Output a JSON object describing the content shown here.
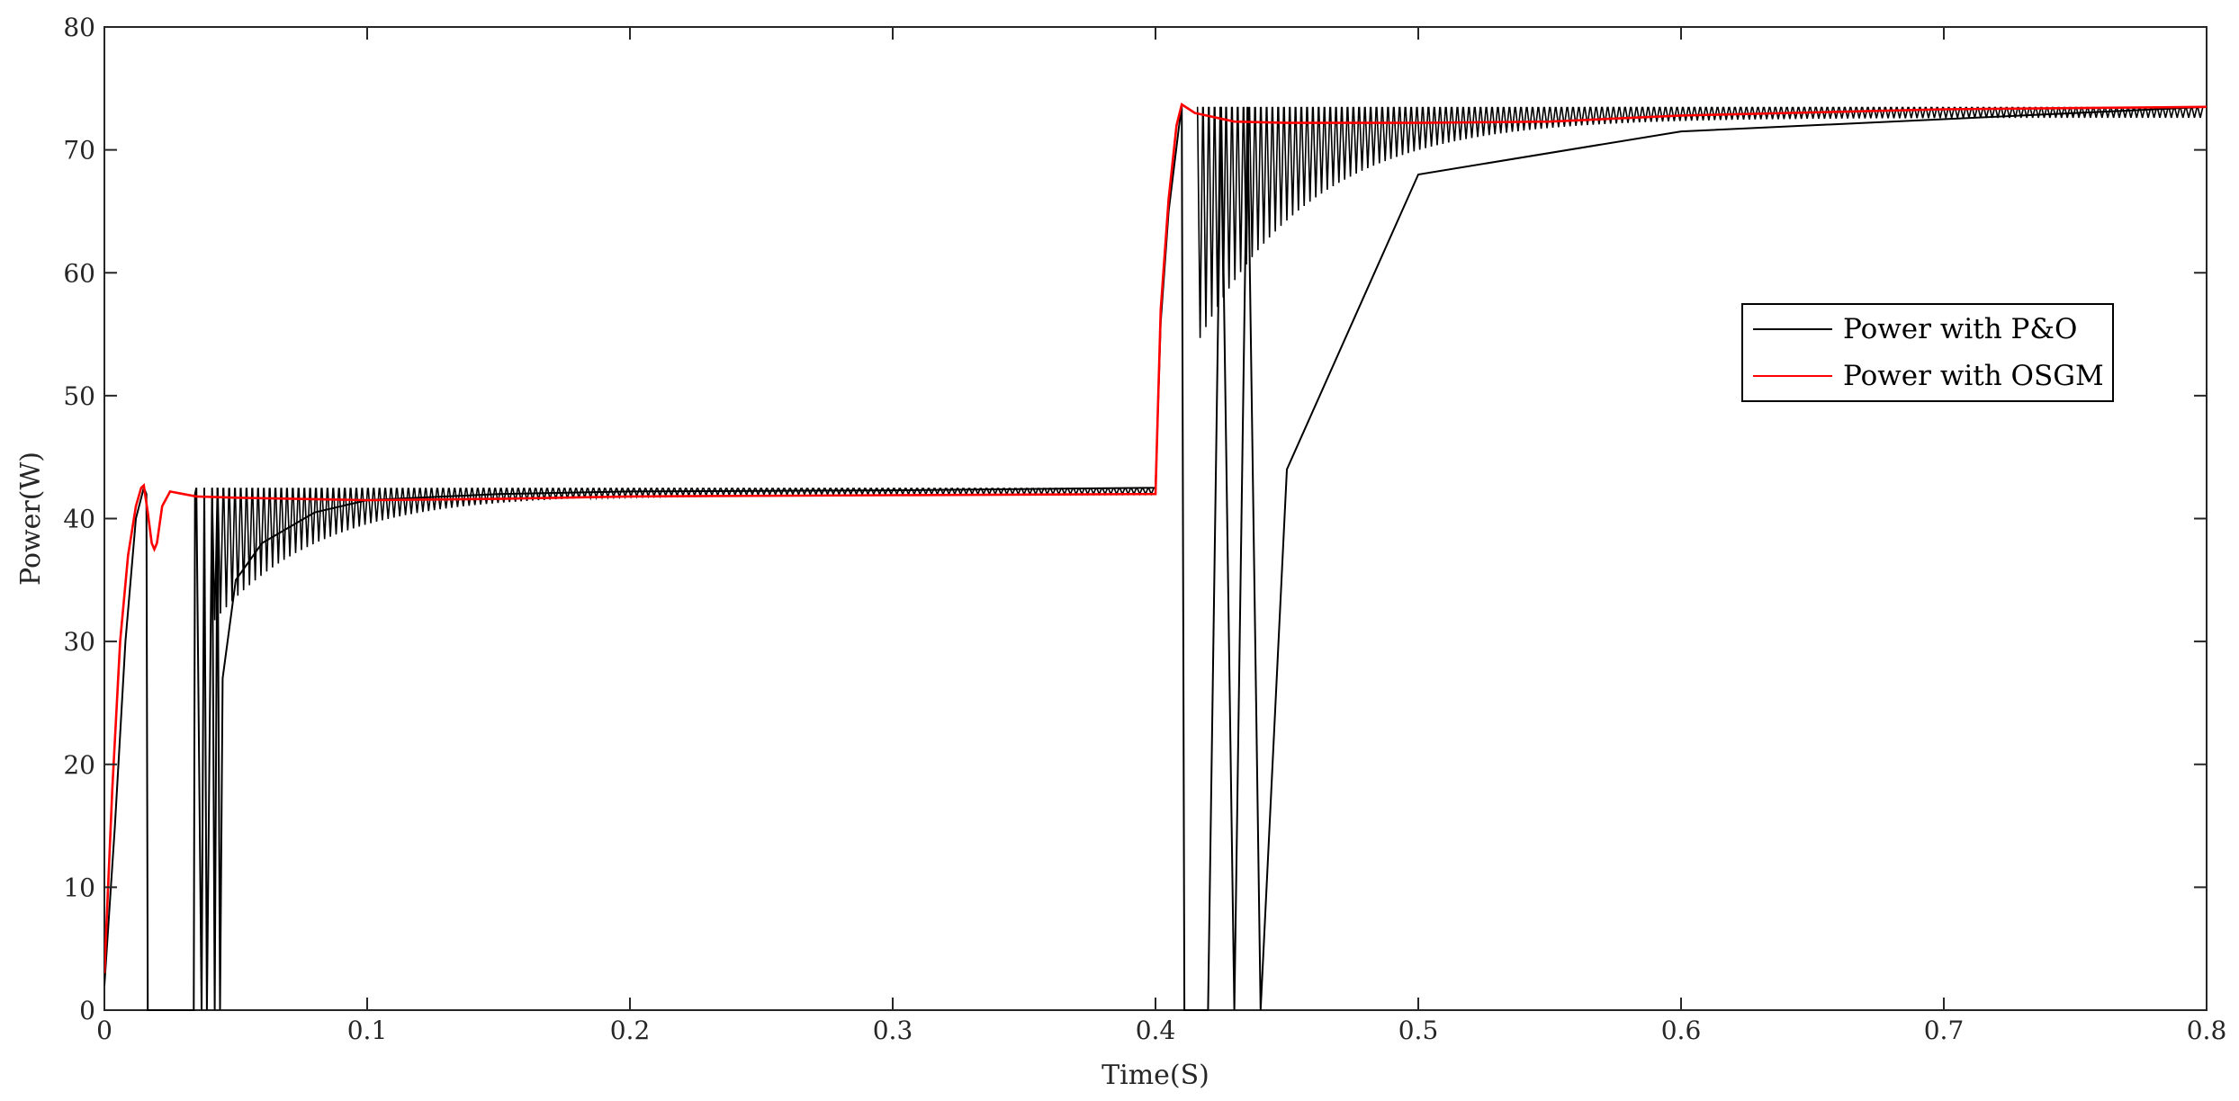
{
  "chart_data": {
    "type": "line",
    "title": "",
    "xlabel": "Time(S)",
    "ylabel": "Power(W)",
    "xlim": [
      0,
      0.8
    ],
    "ylim": [
      0,
      80
    ],
    "xticks": [
      0,
      0.1,
      0.2,
      0.3,
      0.4,
      0.5,
      0.6,
      0.7,
      0.8
    ],
    "xtick_labels": [
      "0",
      "0.1",
      "0.2",
      "0.3",
      "0.4",
      "0.5",
      "0.6",
      "0.7",
      "0.8"
    ],
    "yticks": [
      0,
      10,
      20,
      30,
      40,
      50,
      60,
      70,
      80
    ],
    "ytick_labels": [
      "0",
      "10",
      "20",
      "30",
      "40",
      "50",
      "60",
      "70",
      "80"
    ],
    "grid": false,
    "legend_position": "right",
    "series": [
      {
        "name": "Power with P&O",
        "color": "#000000",
        "oscillating": true,
        "steady_levels": [
          {
            "t_start": 0.035,
            "t_end": 0.4,
            "value": 42.5
          },
          {
            "t_start": 0.41,
            "t_end": 0.8,
            "value": 73.5
          }
        ],
        "x": [
          0,
          0.004,
          0.008,
          0.012,
          0.015,
          0.016,
          0.0165,
          0.034,
          0.0345,
          0.035,
          0.037,
          0.038,
          0.039,
          0.041,
          0.042,
          0.043,
          0.044,
          0.045,
          0.05,
          0.06,
          0.08,
          0.1,
          0.15,
          0.2,
          0.3,
          0.4,
          0.402,
          0.405,
          0.409,
          0.41,
          0.411,
          0.42,
          0.425,
          0.43,
          0.435,
          0.44,
          0.45,
          0.5,
          0.6,
          0.7,
          0.8
        ],
        "values": [
          2,
          15,
          30,
          40,
          42.5,
          42,
          0,
          0,
          42,
          42.5,
          0,
          42.5,
          0,
          42.5,
          0,
          42.5,
          0,
          27,
          35,
          38,
          40.5,
          41.5,
          42,
          42.2,
          42.3,
          42.5,
          56,
          65,
          72,
          73.5,
          0,
          0,
          73.5,
          0,
          73.5,
          0,
          44,
          68,
          71.5,
          72.5,
          73.5
        ]
      },
      {
        "name": "Power with OSGM",
        "color": "#ff0000",
        "x": [
          0,
          0.003,
          0.006,
          0.009,
          0.012,
          0.014,
          0.015,
          0.0165,
          0.018,
          0.019,
          0.02,
          0.022,
          0.025,
          0.03,
          0.035,
          0.05,
          0.1,
          0.15,
          0.2,
          0.3,
          0.4,
          0.402,
          0.405,
          0.408,
          0.41,
          0.415,
          0.43,
          0.45,
          0.5,
          0.55,
          0.6,
          0.7,
          0.8
        ],
        "values": [
          3,
          18,
          30,
          37,
          41,
          42.5,
          42.7,
          40.5,
          38,
          37.5,
          38,
          41,
          42.2,
          42,
          41.8,
          41.7,
          41.5,
          41.6,
          41.8,
          41.9,
          42,
          57,
          66,
          72,
          73.7,
          73,
          72.3,
          72.2,
          72.2,
          72.3,
          72.8,
          73.3,
          73.5
        ]
      }
    ]
  }
}
